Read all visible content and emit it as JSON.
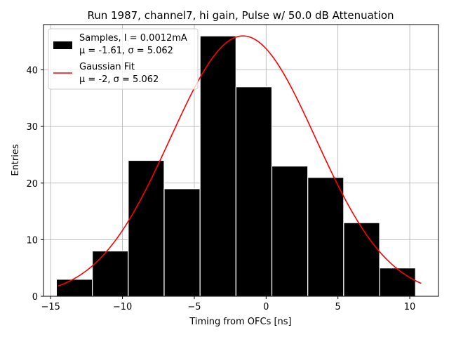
{
  "chart_data": {
    "type": "bar",
    "title": "Run 1987, channel7, hi gain, Pulse w/ 50.0 dB Attenuation",
    "xlabel": "Timing from OFCs [ns]",
    "ylabel": "Entries",
    "xlim": [
      -15.5,
      12
    ],
    "ylim": [
      0,
      48
    ],
    "xticks": [
      -15,
      -10,
      -5,
      0,
      5,
      10
    ],
    "yticks": [
      0,
      10,
      20,
      30,
      40
    ],
    "grid": true,
    "legend_position": "top-left",
    "histogram": {
      "name": "Samples, I = 0.0012mA",
      "subtitle": "μ = -1.61, σ = 5.062",
      "color": "#000000",
      "bin_edges": [
        -14.6,
        -12.1,
        -9.6,
        -7.1,
        -4.6,
        -2.1,
        0.4,
        2.9,
        5.4,
        7.9,
        10.4
      ],
      "counts": [
        3,
        8,
        24,
        19,
        46,
        37,
        23,
        21,
        13,
        5
      ]
    },
    "fit": {
      "name": "Gaussian Fit",
      "subtitle": "μ = -2, σ = 5.062",
      "color": "#ff0000",
      "mu": -1.61,
      "sigma": 5.062,
      "amplitude": 46,
      "x_range": [
        -14.5,
        10.8
      ]
    }
  }
}
